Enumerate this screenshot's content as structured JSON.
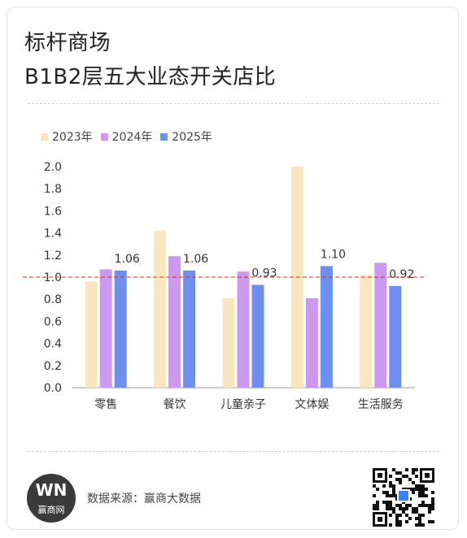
{
  "header": {
    "title_line1": "标杆商场",
    "title_line2": "B1B2层五大业态开关店比"
  },
  "footer": {
    "logo_mark": "WN",
    "logo_text": "赢商网",
    "source": "数据来源：赢商大数据"
  },
  "colors": {
    "s2023": "#f8e6bf",
    "s2024": "#cc99ee",
    "s2025": "#6c8ff0",
    "reference": "#c0392b"
  },
  "chart_data": {
    "type": "bar",
    "categories": [
      "零售",
      "餐饮",
      "儿童亲子",
      "文体娱",
      "生活服务"
    ],
    "series": [
      {
        "name": "2023年",
        "values": [
          0.96,
          1.42,
          0.81,
          2.0,
          1.02
        ]
      },
      {
        "name": "2024年",
        "values": [
          1.07,
          1.19,
          1.05,
          0.81,
          1.13
        ]
      },
      {
        "name": "2025年",
        "values": [
          1.06,
          1.06,
          0.93,
          1.1,
          0.92
        ]
      }
    ],
    "data_labels_series": "2025年",
    "data_labels": [
      "1.06",
      "1.06",
      "0.93",
      "1.10",
      "0.92"
    ],
    "yticks": [
      "0.0",
      "0.2",
      "0.4",
      "0.6",
      "0.8",
      "1.0",
      "1.2",
      "1.4",
      "1.6",
      "1.8",
      "2.0"
    ],
    "ylim": [
      0,
      2.0
    ],
    "reference_line": 1.0,
    "legend_position": "top-left",
    "grid": false
  }
}
